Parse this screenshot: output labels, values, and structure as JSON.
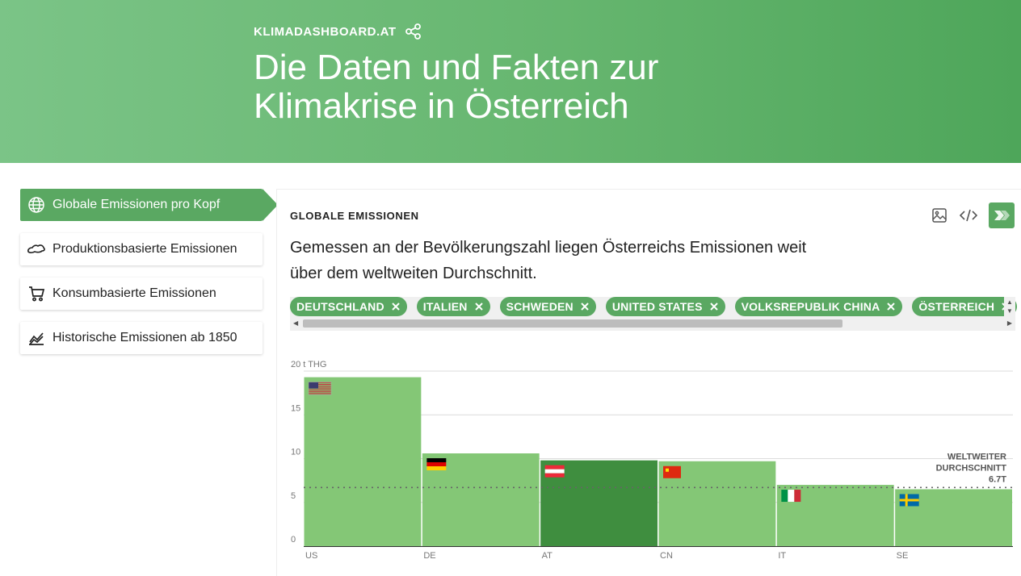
{
  "header": {
    "site": "KLIMADASHBOARD.AT",
    "title": "Die Daten und Fakten zur Klimakrise in Österreich"
  },
  "sidebar": {
    "items": [
      {
        "label": "Globale Emissionen pro Kopf",
        "icon": "globe-icon",
        "active": true
      },
      {
        "label": "Produktionsbasierte Emissionen",
        "icon": "austria-outline-icon",
        "active": false
      },
      {
        "label": "Konsumbasierte Emissionen",
        "icon": "cart-icon",
        "active": false
      },
      {
        "label": "Historische Emissionen ab 1850",
        "icon": "trend-chart-icon",
        "active": false
      }
    ]
  },
  "card": {
    "kicker": "GLOBALE EMISSIONEN",
    "lead": "Gemessen an der Bevölkerungszahl liegen Österreichs Emissionen weit über dem weltweiten Durchschnitt.",
    "tools": [
      "image-icon",
      "code-icon",
      "klimadashboard-logo-icon"
    ]
  },
  "chips": [
    "DEUTSCHLAND",
    "ITALIEN",
    "SCHWEDEN",
    "UNITED STATES",
    "VOLKSREPUBLIK CHINA",
    "ÖSTERREICH"
  ],
  "colors": {
    "accent": "#5aa862",
    "bar": "#84c776",
    "bar_highlight": "#3f8e3f",
    "hero": "#66b66f"
  },
  "chart_data": {
    "type": "bar",
    "ylabel": "t THG",
    "ylim": [
      0,
      20
    ],
    "yticks": [
      0,
      5,
      10,
      15,
      20
    ],
    "categories": [
      "US",
      "DE",
      "AT",
      "CN",
      "IT",
      "SE"
    ],
    "values": [
      19.3,
      10.6,
      9.8,
      9.7,
      7.0,
      6.5
    ],
    "highlight": "AT",
    "average": {
      "value": 6.7,
      "label_line1": "WELTWEITER",
      "label_line2": "DURCHSCHNITT",
      "label_line3": "6.7T"
    }
  }
}
